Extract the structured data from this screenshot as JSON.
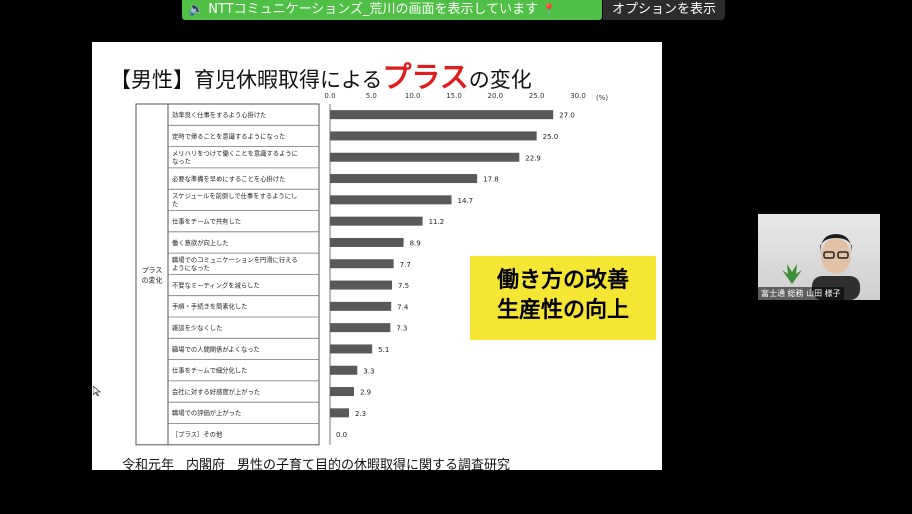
{
  "meeting": {
    "share_banner": "NTTコミュニケーションズ_荒川の画面を表示しています",
    "options_label": "オプションを表示",
    "participant_name": "富士通 総務 山田 様子"
  },
  "slide": {
    "title_prefix": "【男性】育児休暇取得による",
    "title_highlight": "プラス",
    "title_suffix": "の変化",
    "callout_line1": "働き方の改善",
    "callout_line2": "生産性の向上",
    "source_era": "令和元年",
    "source_org": "内閣府",
    "source_title": "男性の子育て目的の休暇取得に関する調査研究",
    "category_group": "プラスの変化"
  },
  "chart_data": {
    "type": "bar",
    "orientation": "horizontal",
    "unit": "(%)",
    "xlim": [
      0,
      30
    ],
    "ticks": [
      "0.0",
      "5.0",
      "10.0",
      "15.0",
      "20.0",
      "25.0",
      "30.0"
    ],
    "categories": [
      "効率良く仕事をするよう心掛けた",
      "定時で帰ることを意識するようになった",
      "メリハリをつけて働くことを意識するようになった",
      "必要な準備を早めにすることを心掛けた",
      "スケジュールを前倒しで仕事をするようにした",
      "仕事をチームで共有した",
      "働く意欲が向上した",
      "職場でのコミュニケーションを円滑に行えるようになった",
      "不要なミーティングを減らした",
      "手順・手続きを簡素化した",
      "雑談を少なくした",
      "職場での人間関係がよくなった",
      "仕事をチームで細分化した",
      "会社に対する好感度が上がった",
      "職場での評価が上がった",
      "［プラス］その他"
    ],
    "values": [
      27.0,
      25.0,
      22.9,
      17.8,
      14.7,
      11.2,
      8.9,
      7.7,
      7.5,
      7.4,
      7.3,
      5.1,
      3.3,
      2.9,
      2.3,
      0.0
    ],
    "value_labels": [
      "27.0",
      "25.0",
      "22.9",
      "17.8",
      "14.7",
      "11.2",
      "8.9",
      "7.7",
      "7.5",
      "7.4",
      "7.3",
      "5.1",
      "3.3",
      "2.9",
      "2.3",
      "0.0"
    ],
    "bar_color": "#595959"
  }
}
